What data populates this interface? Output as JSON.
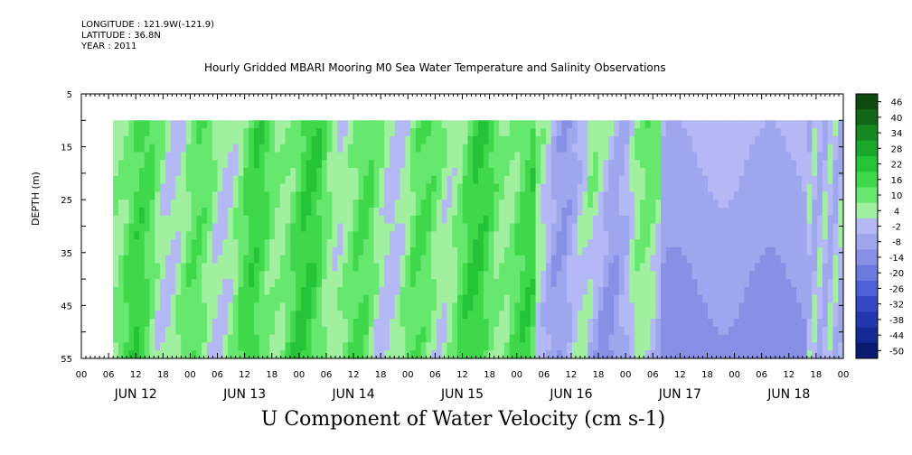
{
  "header": {
    "longitude": "LONGITUDE : 121.9W(-121.9)",
    "latitude": "LATITUDE : 36.8N",
    "year": "YEAR : 2011"
  },
  "plot_title": "Hourly Gridded MBARI Mooring M0 Sea Water Temperature and Salinity Observations",
  "bottom_title": "U Component of Water Velocity (cm s-1)",
  "chart_data": {
    "type": "heatmap",
    "title": "Hourly Gridded MBARI Mooring M0 Sea Water Temperature and Salinity Observations",
    "variable": "U Component of Water Velocity (cm s-1)",
    "ylabel": "DEPTH (m)",
    "ylim": [
      5,
      55
    ],
    "y_inverted": true,
    "y_ticks": [
      5,
      15,
      25,
      35,
      45,
      55
    ],
    "x_hour_ticks": [
      "00",
      "06",
      "12",
      "18",
      "00",
      "06",
      "12",
      "18",
      "00",
      "06",
      "12",
      "18",
      "00",
      "06",
      "12",
      "18",
      "00",
      "06",
      "12",
      "18",
      "00",
      "06",
      "12",
      "18",
      "00",
      "06",
      "12",
      "18",
      "00"
    ],
    "x_day_labels": [
      "JUN 12",
      "JUN 13",
      "JUN 14",
      "JUN 15",
      "JUN 16",
      "JUN 17",
      "JUN 18"
    ],
    "data_start_hour": 7,
    "data_end_hour": 168,
    "data_top_depth": 10,
    "colorbar_levels": [
      46,
      40,
      34,
      28,
      22,
      16,
      10,
      4,
      -2,
      -8,
      -14,
      -20,
      -26,
      -32,
      -38,
      -44,
      -50
    ],
    "colorbar_colors": [
      "#0d4a10",
      "#12661a",
      "#168a22",
      "#1aa82a",
      "#24c436",
      "#3ed84a",
      "#66e86e",
      "#a0f0a0",
      "#b4b8f4",
      "#9ea6ee",
      "#8890e6",
      "#6c7ae0",
      "#4c60d8",
      "#3448c8",
      "#2238b0",
      "#142a94",
      "#0a1a70"
    ],
    "grid": false,
    "legend": "right colorbar"
  }
}
